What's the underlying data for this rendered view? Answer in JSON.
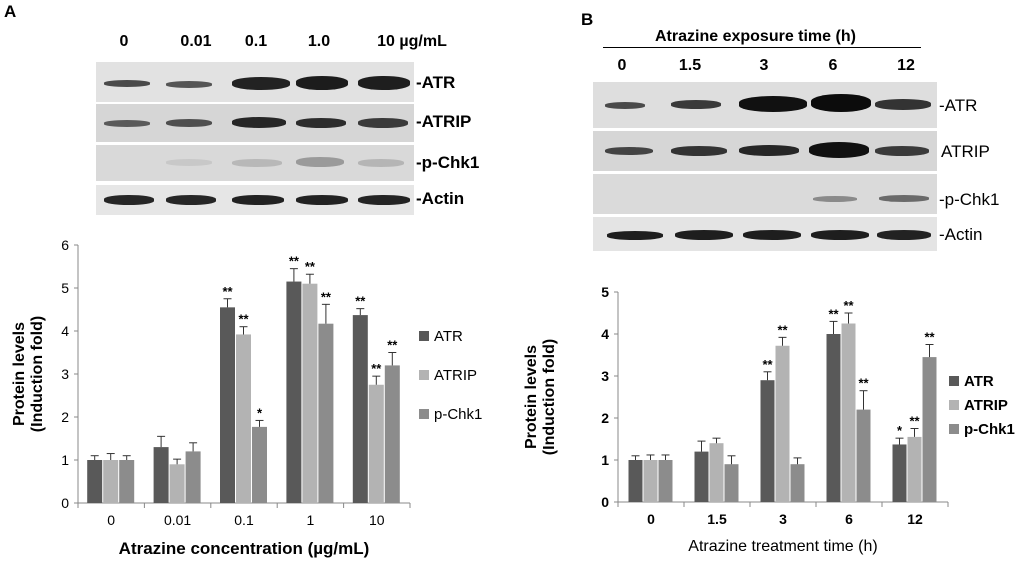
{
  "panel_a": {
    "letter": "A",
    "conc_labels": [
      "0",
      "0.01",
      "0.1",
      "1.0",
      "10 µg/mL"
    ],
    "blot_labels": [
      "-ATR",
      "-ATRIP",
      "-p-Chk1",
      "-Actin"
    ]
  },
  "panel_b": {
    "letter": "B",
    "exposure_title": "Atrazine exposure time (h)",
    "time_labels": [
      "0",
      "1.5",
      "3",
      "6",
      "12"
    ],
    "blot_labels": [
      "-ATR",
      "ATRIP",
      "-p-Chk1",
      "-Actin"
    ]
  },
  "colors": {
    "ATR": "#595959",
    "ATRIP": "#b3b3b3",
    "p-Chk1": "#8c8c8c"
  },
  "chart_data": [
    {
      "type": "bar",
      "categories": [
        "0",
        "0.01",
        "0.1",
        "1",
        "10"
      ],
      "xlabel": "Atrazine concentration (µg/mL)",
      "ylabel_lines": [
        "Protein levels",
        "(Induction fold)"
      ],
      "ylim": [
        0,
        6
      ],
      "yticks": [
        0,
        1,
        2,
        3,
        4,
        5,
        6
      ],
      "legend_position": "right",
      "series": [
        {
          "name": "ATR",
          "color": "#595959",
          "values": [
            1.0,
            1.3,
            4.55,
            5.15,
            4.37
          ],
          "errors": [
            0.1,
            0.25,
            0.2,
            0.3,
            0.15
          ],
          "sig": [
            "",
            "",
            "**",
            "**",
            "**"
          ]
        },
        {
          "name": "ATRIP",
          "color": "#b3b3b3",
          "values": [
            1.0,
            0.9,
            3.92,
            5.1,
            2.75
          ],
          "errors": [
            0.15,
            0.12,
            0.18,
            0.22,
            0.2
          ],
          "sig": [
            "",
            "",
            "**",
            "**",
            "**"
          ]
        },
        {
          "name": "p-Chk1",
          "color": "#8c8c8c",
          "values": [
            1.0,
            1.2,
            1.77,
            4.17,
            3.2
          ],
          "errors": [
            0.1,
            0.2,
            0.15,
            0.45,
            0.3
          ],
          "sig": [
            "",
            "",
            "*",
            "**",
            "**"
          ]
        }
      ]
    },
    {
      "type": "bar",
      "categories": [
        "0",
        "1.5",
        "3",
        "6",
        "12"
      ],
      "xlabel": "Atrazine treatment time (h)",
      "ylabel_lines": [
        "Protein levels",
        "(Induction fold)"
      ],
      "ylim": [
        0,
        5
      ],
      "yticks": [
        0,
        1,
        2,
        3,
        4,
        5
      ],
      "legend_position": "right",
      "series": [
        {
          "name": "ATR",
          "color": "#595959",
          "values": [
            1.0,
            1.2,
            2.9,
            4.0,
            1.37
          ],
          "errors": [
            0.1,
            0.25,
            0.2,
            0.3,
            0.15
          ],
          "sig": [
            "",
            "",
            "**",
            "**",
            "*"
          ]
        },
        {
          "name": "ATRIP",
          "color": "#b3b3b3",
          "values": [
            1.0,
            1.4,
            3.72,
            4.25,
            1.55
          ],
          "errors": [
            0.12,
            0.12,
            0.2,
            0.25,
            0.2
          ],
          "sig": [
            "",
            "",
            "**",
            "**",
            "**"
          ]
        },
        {
          "name": "p-Chk1",
          "color": "#8c8c8c",
          "values": [
            1.0,
            0.9,
            0.9,
            2.2,
            3.45
          ],
          "errors": [
            0.12,
            0.2,
            0.15,
            0.45,
            0.3
          ],
          "sig": [
            "",
            "",
            "",
            "**",
            "**"
          ]
        }
      ]
    }
  ]
}
